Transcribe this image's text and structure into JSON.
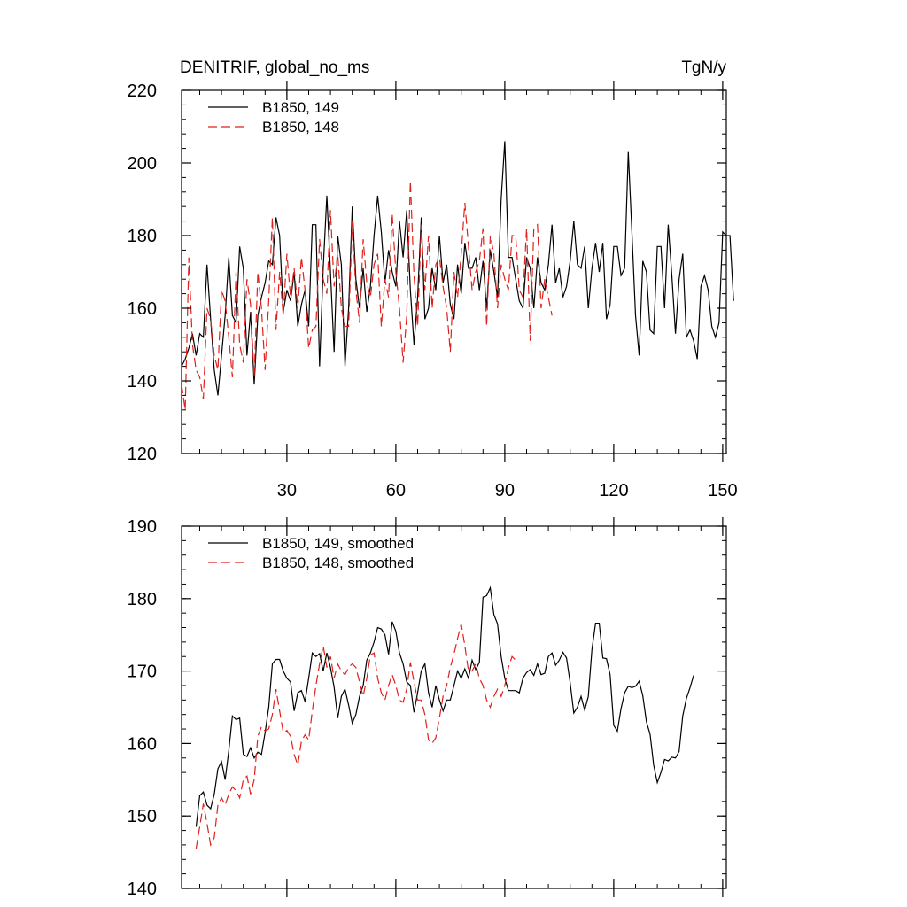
{
  "title_left": "DENITRIF, global_no_ms",
  "title_right": "TgN/y",
  "colors": {
    "series1": "#000000",
    "series2": "#e0201b",
    "axis": "#000000"
  },
  "chart_data": [
    {
      "type": "line",
      "title": "DENITRIF, global_no_ms",
      "units": "TgN/y",
      "xlim": [
        1,
        151
      ],
      "ylim": [
        120,
        220
      ],
      "xticks": [
        30,
        60,
        90,
        120,
        150
      ],
      "xtick_labels": [
        "30",
        "60",
        "90",
        "120",
        "150"
      ],
      "yticks": [
        120,
        140,
        160,
        180,
        200,
        220
      ],
      "ytick_labels": [
        "120",
        "140",
        "160",
        "180",
        "200",
        "220"
      ],
      "legend_position": "top-left",
      "series": [
        {
          "name": "B1850, 149",
          "style": "solid",
          "x_start": 1,
          "values": [
            144,
            146,
            149,
            153,
            147,
            153,
            152,
            172,
            157,
            143,
            136,
            147,
            158,
            174,
            158,
            156,
            177,
            171,
            147,
            159,
            139,
            158,
            163,
            167,
            173,
            172,
            185,
            180,
            159,
            165,
            162,
            170,
            155,
            161,
            165,
            155,
            183,
            183,
            144,
            171,
            191,
            170,
            148,
            180,
            172,
            144,
            160,
            188,
            168,
            160,
            171,
            159,
            166,
            180,
            191,
            181,
            167,
            176,
            170,
            166,
            184,
            174,
            187,
            165,
            150,
            163,
            185,
            157,
            160,
            171,
            165,
            180,
            167,
            172,
            161,
            157,
            172,
            164,
            178,
            171,
            171,
            174,
            165,
            173,
            160,
            176,
            170,
            163,
            190,
            206,
            174,
            174,
            168,
            162,
            160,
            174,
            171,
            160,
            174,
            167,
            165,
            172,
            183,
            167,
            171,
            163,
            166,
            173,
            184,
            172,
            171,
            177,
            160,
            171,
            178,
            170,
            178,
            157,
            161,
            177,
            177,
            169,
            171,
            203,
            181,
            158,
            147,
            173,
            170,
            154,
            153,
            177,
            177,
            160,
            183,
            169,
            153,
            168,
            175,
            152,
            154,
            151,
            146,
            166,
            169,
            165,
            155,
            152,
            156,
            181,
            180,
            180,
            162
          ]
        },
        {
          "name": "B1850, 148",
          "style": "dashed",
          "x_start": 1,
          "values": [
            139,
            132,
            174,
            150,
            143,
            141,
            135,
            160,
            157,
            147,
            143,
            165,
            162,
            152,
            141,
            170,
            150,
            145,
            168,
            161,
            141,
            170,
            160,
            143,
            162,
            185,
            154,
            170,
            158,
            175,
            163,
            171,
            160,
            174,
            165,
            149,
            154,
            155,
            179,
            168,
            164,
            187,
            166,
            175,
            160,
            155,
            155,
            184,
            165,
            156,
            179,
            167,
            163,
            172,
            175,
            155,
            168,
            163,
            186,
            170,
            160,
            145,
            158,
            195,
            169,
            155,
            183,
            165,
            180,
            160,
            172,
            174,
            166,
            160,
            148,
            170,
            163,
            175,
            189,
            177,
            165,
            170,
            173,
            182,
            155,
            180,
            175,
            160,
            172,
            168,
            165,
            180,
            180,
            165,
            163,
            182,
            151,
            182,
            183,
            160,
            168,
            163,
            158
          ]
        }
      ]
    },
    {
      "type": "line",
      "xlim": [
        1,
        151
      ],
      "ylim": [
        140,
        190
      ],
      "xticks": [
        30,
        60,
        90,
        120,
        150
      ],
      "yticks": [
        140,
        150,
        160,
        170,
        180,
        190
      ],
      "ytick_labels": [
        "140",
        "150",
        "160",
        "170",
        "180",
        "190"
      ],
      "legend_position": "top-left",
      "series": [
        {
          "name": "B1850, 149, smoothed",
          "style": "solid",
          "x_start": 5,
          "values": [
            148.5,
            152.8,
            153.3,
            151.5,
            151.0,
            153.0,
            156.5,
            157.5,
            155.0,
            159.0,
            163.8,
            163.3,
            163.5,
            158.5,
            158.2,
            159.4,
            158.0,
            158.8,
            158.5,
            161.5,
            165.0,
            171.0,
            171.6,
            171.6,
            170.0,
            169.0,
            168.5,
            164.5,
            167.0,
            167.3,
            165.8,
            169.0,
            172.5,
            172.0,
            172.4,
            170.0,
            172.5,
            170.5,
            167.8,
            163.5,
            166.5,
            167.5,
            165.3,
            162.8,
            164.0,
            166.5,
            168.0,
            171.5,
            172.5,
            174.0,
            176.0,
            175.8,
            175.0,
            172.3,
            176.8,
            175.5,
            172.5,
            171.0,
            168.5,
            168.0,
            164.3,
            167.0,
            170.0,
            171.0,
            167.0,
            165.0,
            168.0,
            166.0,
            164.5,
            166.0,
            166.0,
            168.0,
            170.0,
            169.0,
            170.3,
            169.0,
            171.5,
            170.2,
            171.2,
            180.2,
            180.4,
            181.5,
            177.8,
            176.5,
            172.0,
            169.0,
            167.3,
            167.3,
            167.3,
            167.0,
            169.0,
            169.8,
            170.2,
            169.4,
            171.0,
            169.5,
            169.7,
            172.0,
            172.5,
            170.8,
            171.5,
            172.6,
            171.8,
            168.4,
            164.2,
            165.0,
            166.5,
            164.6,
            166.5,
            173.0,
            176.6,
            176.6,
            171.8,
            171.7,
            169.5,
            162.5,
            161.7,
            164.8,
            167.0,
            167.9,
            167.7,
            167.9,
            168.6,
            166.6,
            163.0,
            161.3,
            157.0,
            154.6,
            156.0,
            157.8,
            157.6,
            158.1,
            158.0,
            158.9,
            163.8,
            166.2,
            167.7,
            169.4
          ]
        },
        {
          "name": "B1850, 148, smoothed",
          "style": "dashed",
          "x_start": 5,
          "values": [
            145.5,
            148.5,
            151.7,
            149.0,
            146.0,
            147.0,
            151.5,
            152.5,
            151.5,
            153.0,
            154.0,
            153.5,
            152.5,
            155.0,
            155.5,
            153.0,
            155.0,
            161.0,
            162.3,
            161.7,
            162.0,
            164.0,
            167.5,
            164.5,
            161.5,
            161.8,
            161.0,
            158.5,
            157.0,
            160.3,
            161.2,
            160.5,
            164.5,
            168.0,
            171.0,
            173.5,
            170.5,
            172.0,
            169.0,
            171.0,
            170.0,
            169.5,
            170.5,
            171.0,
            170.5,
            168.5,
            166.5,
            169.0,
            172.2,
            172.5,
            169.0,
            167.0,
            166.0,
            168.0,
            169.5,
            168.0,
            166.0,
            165.7,
            167.5,
            171.2,
            168.5,
            166.0,
            166.0,
            164.0,
            160.5,
            160.0,
            160.8,
            163.5,
            166.5,
            168.0,
            170.5,
            172.3,
            174.5,
            176.5,
            173.5,
            170.0,
            170.0,
            171.0,
            169.0,
            168.0,
            166.0,
            165.0,
            166.5,
            167.5,
            166.5,
            168.0,
            170.5,
            172.0,
            171.5
          ]
        }
      ]
    }
  ]
}
